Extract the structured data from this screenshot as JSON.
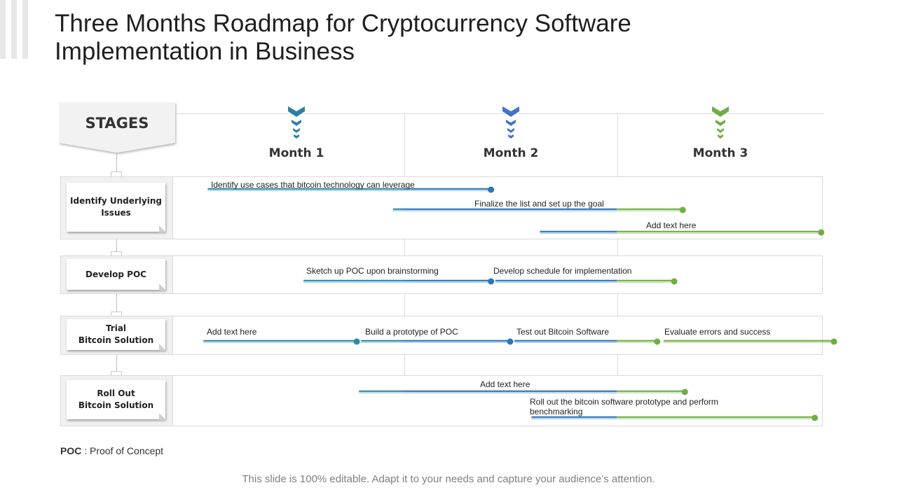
{
  "title": "Three Months Roadmap for Cryptocurrency Software Implementation in Business",
  "stages_header": "STAGES",
  "months": [
    "Month 1",
    "Month 2",
    "Month 3"
  ],
  "month_colors": [
    "#2f7fa5",
    "#4472c4",
    "#70ad47"
  ],
  "colors": {
    "blue": "#2e75b6",
    "teal": "#2f8aa6",
    "green": "#70ad47"
  },
  "stages": [
    {
      "name": "Identify Underlying\nIssues",
      "tasks": [
        {
          "label": "Identify use cases that bitcoin technology can leverage",
          "start_month": 0.08,
          "end_month": 1.41
        },
        {
          "label": "Finalize the list and set up the goal",
          "start_month": 0.95,
          "end_month": 2.31
        },
        {
          "label": "Add text here",
          "start_month": 1.64,
          "end_month": 2.96
        }
      ]
    },
    {
      "name": "Develop POC",
      "tasks": [
        {
          "label": "Sketch up POC upon brainstorming",
          "start_month": 0.53,
          "end_month": 1.41
        },
        {
          "label": "Develop schedule for implementation",
          "start_month": 1.43,
          "end_month": 2.27
        }
      ]
    },
    {
      "name": "Trial\nBitcoin Solution",
      "tasks": [
        {
          "label": "Add text here",
          "start_month": 0.06,
          "end_month": 0.78
        },
        {
          "label": "Build a prototype of POC",
          "start_month": 0.8,
          "end_month": 1.5
        },
        {
          "label": "Test out Bitcoin Software",
          "start_month": 1.52,
          "end_month": 2.19
        },
        {
          "label": "Evaluate errors and success",
          "start_month": 2.22,
          "end_month": 3.02
        }
      ]
    },
    {
      "name": "Roll Out\nBitcoin Solution",
      "tasks": [
        {
          "label": "Add text here",
          "start_month": 0.79,
          "end_month": 2.32
        },
        {
          "label": "Roll out the bitcoin software prototype and perform benchmarking",
          "start_month": 1.6,
          "end_month": 2.93
        }
      ]
    }
  ],
  "footnote": {
    "term": "POC",
    "definition": " : Proof of Concept"
  },
  "footer": "This slide is 100% editable. Adapt it to your needs and capture your audience’s attention."
}
